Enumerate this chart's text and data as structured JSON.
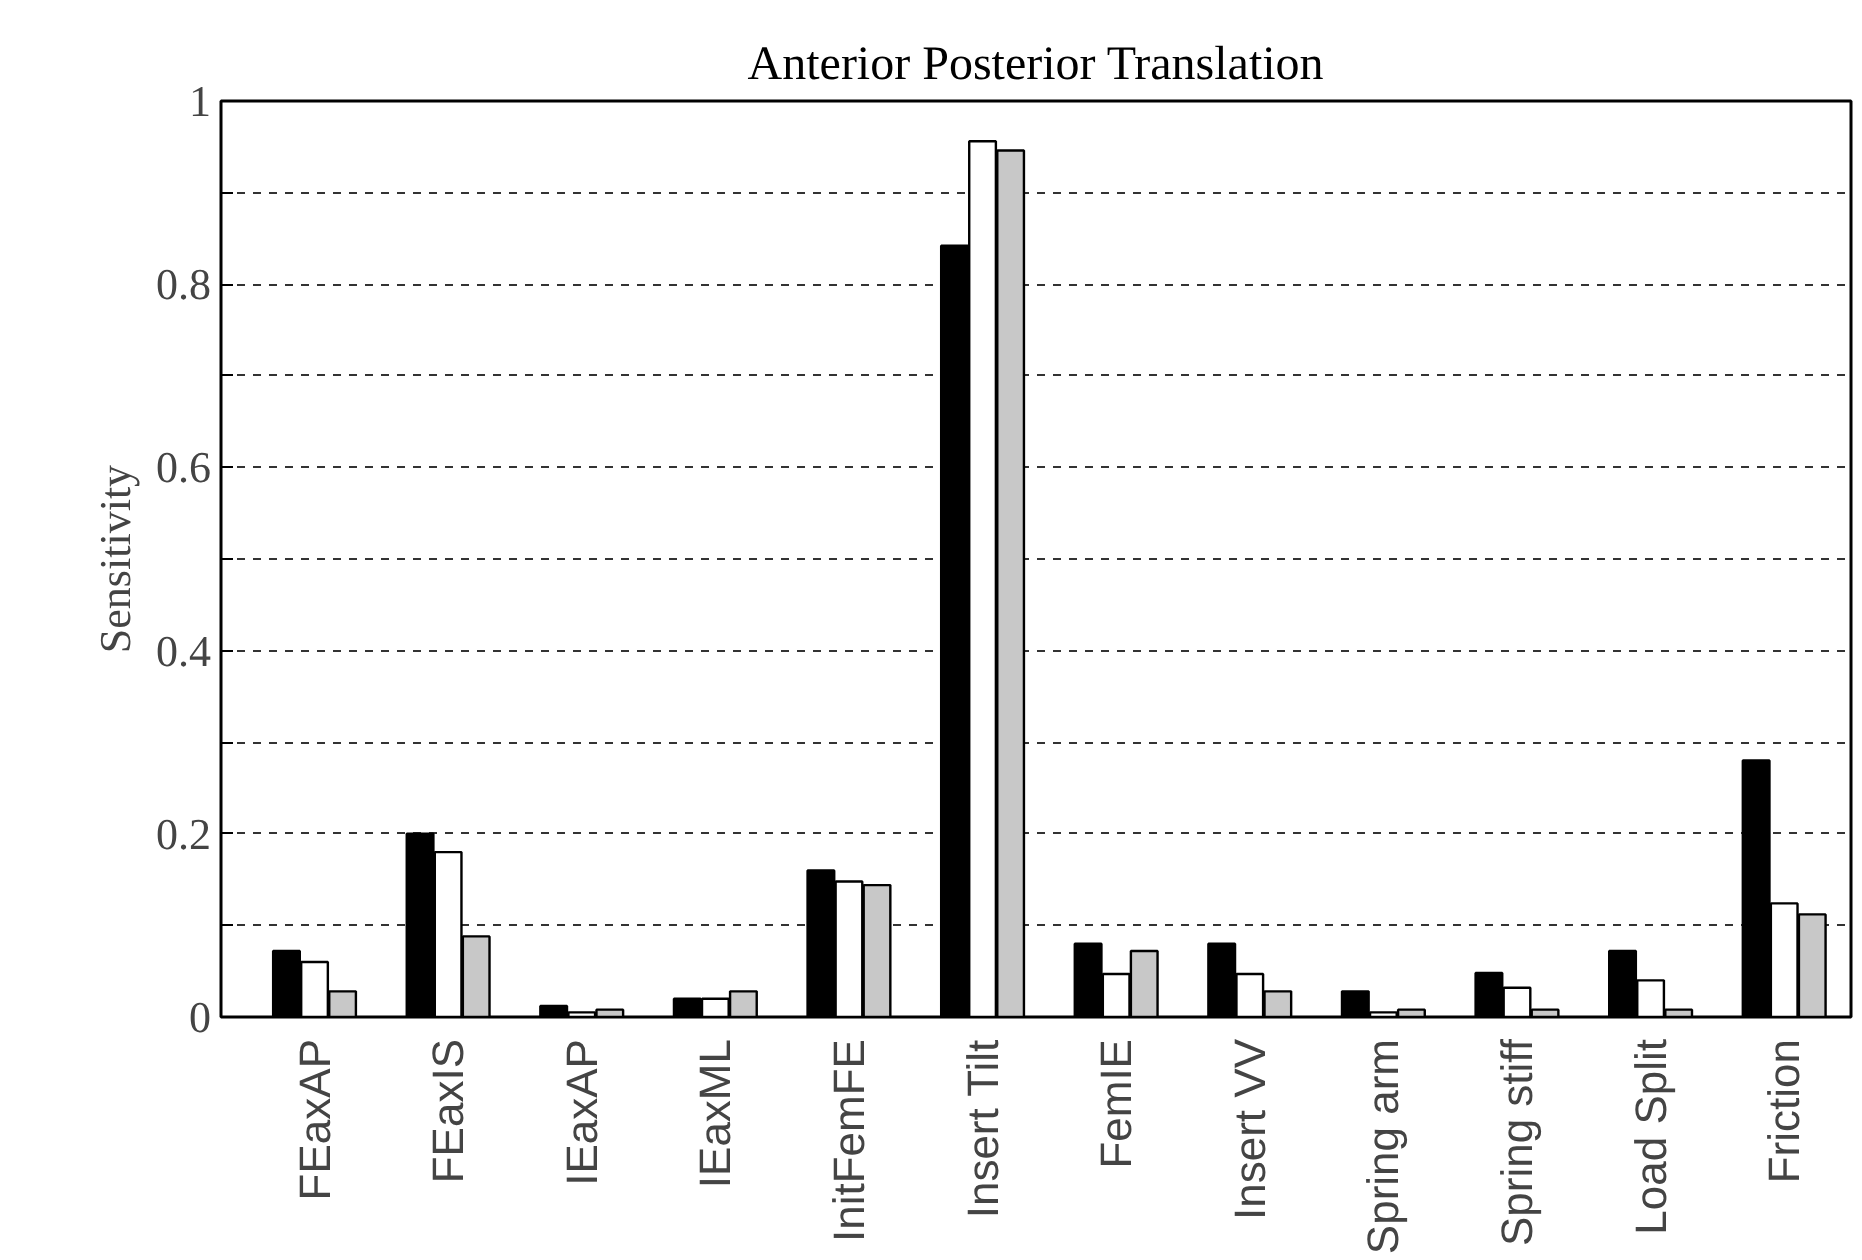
{
  "chart_data": {
    "type": "bar",
    "title": "Anterior Posterior Translation",
    "ylabel": "Sensitivity",
    "categories": [
      "FEaxAP",
      "FEaxIS",
      "IEaxAP",
      "IEaxML",
      "InitFemFE",
      "Insert Tilt",
      "FemIE",
      "Insert VV",
      "Spring arm",
      "Spring stiff",
      "Load Split",
      "Friction"
    ],
    "series": [
      {
        "color": "#000000",
        "values": [
          0.072,
          0.2,
          0.012,
          0.02,
          0.16,
          0.842,
          0.08,
          0.08,
          0.028,
          0.048,
          0.072,
          0.28
        ]
      },
      {
        "color": "#ffffff",
        "values": [
          0.06,
          0.18,
          0.005,
          0.02,
          0.148,
          0.956,
          0.047,
          0.047,
          0.005,
          0.032,
          0.04,
          0.124
        ]
      },
      {
        "color": "#c8c8c8",
        "values": [
          0.028,
          0.088,
          0.008,
          0.028,
          0.144,
          0.946,
          0.072,
          0.028,
          0.008,
          0.008,
          0.008,
          0.112
        ]
      }
    ],
    "ylim": [
      0,
      1
    ],
    "yticks": [
      0,
      {
        "value": 0.1,
        "label": null
      },
      0.2,
      {
        "value": 0.3,
        "label": null
      },
      0.4,
      {
        "value": 0.5,
        "label": null
      },
      0.6,
      {
        "value": 0.7,
        "label": null
      },
      0.8,
      {
        "value": 0.9,
        "label": null
      },
      1
    ],
    "grid": "y"
  }
}
